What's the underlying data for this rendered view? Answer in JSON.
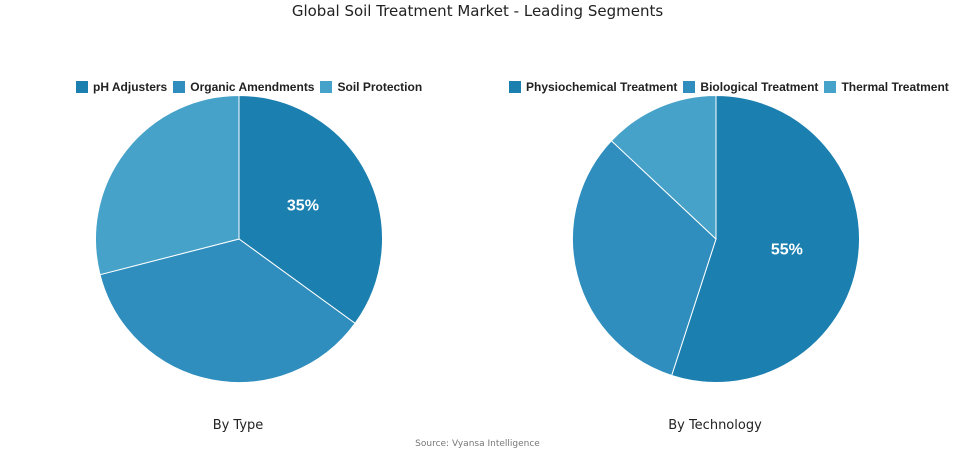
{
  "title": "Global Soil Treatment Market - Leading Segments",
  "source": "Source: Vyansa Intelligence",
  "chart_data": [
    {
      "type": "pie",
      "caption": "By Type",
      "categories": [
        "pH Adjusters",
        "Organic Amendments",
        "Soil Protection"
      ],
      "values": [
        35,
        36,
        29
      ],
      "colors": [
        "#1b7fb0",
        "#2f8ebd",
        "#46a2c9"
      ],
      "data_labels": [
        "35%",
        "",
        ""
      ],
      "legend_position": "top"
    },
    {
      "type": "pie",
      "caption": "By Technology",
      "categories": [
        "Physiochemical Treatment",
        "Biological Treatment",
        "Thermal Treatment"
      ],
      "values": [
        55,
        32,
        13
      ],
      "colors": [
        "#1b7fb0",
        "#2f8ebd",
        "#46a2c9"
      ],
      "data_labels": [
        "55%",
        "",
        ""
      ],
      "legend_position": "top"
    }
  ]
}
